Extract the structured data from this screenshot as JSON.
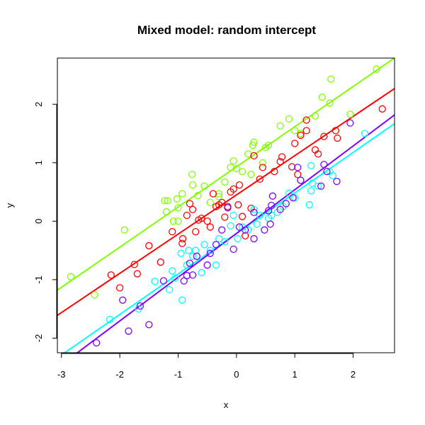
{
  "chart_data": {
    "type": "scatter",
    "title": "Mixed model: random intercept",
    "xlabel": "x",
    "ylabel": "y",
    "xlim": [
      -3.07,
      2.71
    ],
    "ylim": [
      -2.25,
      2.79
    ],
    "xticks": [
      -3,
      -2,
      -1,
      0,
      1,
      2
    ],
    "yticks": [
      -2,
      -1,
      0,
      1,
      2
    ],
    "xtick_labels": [
      "-3",
      "-2",
      "-1",
      "0",
      "1",
      "2"
    ],
    "ytick_labels": [
      "-2",
      "-1",
      "0",
      "1",
      "2"
    ],
    "grid": false,
    "marker": "open-circle",
    "series": [
      {
        "color": "#80FF00",
        "line": {
          "intercept": 0.93,
          "slope": 0.687
        },
        "points": [
          [
            -2.84,
            -0.95
          ],
          [
            -2.43,
            -1.26
          ],
          [
            -1.92,
            -0.15
          ],
          [
            -1.23,
            0.35
          ],
          [
            -1.18,
            0.35
          ],
          [
            -1.2,
            0.16
          ],
          [
            -1.08,
            0.0
          ],
          [
            -1.0,
            0.0
          ],
          [
            -1.02,
            0.38
          ],
          [
            -1.0,
            0.23
          ],
          [
            -0.93,
            0.47
          ],
          [
            -0.75,
            0.62
          ],
          [
            -0.76,
            0.8
          ],
          [
            -0.66,
            0.44
          ],
          [
            -0.55,
            0.6
          ],
          [
            -0.45,
            0.32
          ],
          [
            -0.3,
            0.47
          ],
          [
            -0.2,
            0.67
          ],
          [
            -0.05,
            1.03
          ],
          [
            0.1,
            0.85
          ],
          [
            0.2,
            1.15
          ],
          [
            0.28,
            1.3
          ],
          [
            0.3,
            1.35
          ],
          [
            0.25,
            0.8
          ],
          [
            0.45,
            1.0
          ],
          [
            0.5,
            1.26
          ],
          [
            0.55,
            1.3
          ],
          [
            0.75,
            1.63
          ],
          [
            0.9,
            1.75
          ],
          [
            1.0,
            1.55
          ],
          [
            1.1,
            1.5
          ],
          [
            1.35,
            1.8
          ],
          [
            1.47,
            2.12
          ],
          [
            1.6,
            2.02
          ],
          [
            1.62,
            2.43
          ],
          [
            1.95,
            1.83
          ],
          [
            2.4,
            2.6
          ],
          [
            -0.3,
            0.42
          ],
          [
            -0.1,
            0.92
          ],
          [
            0.0,
            0.9
          ]
        ]
      },
      {
        "color": "#FF0000",
        "line": {
          "intercept": 0.45,
          "slope": 0.671
        },
        "points": [
          [
            -2.15,
            -0.92
          ],
          [
            -2.0,
            -1.14
          ],
          [
            -1.75,
            -0.74
          ],
          [
            -1.7,
            -0.9
          ],
          [
            -1.5,
            -0.42
          ],
          [
            -1.3,
            -0.7
          ],
          [
            -1.1,
            -0.18
          ],
          [
            -0.93,
            -0.38
          ],
          [
            -0.92,
            -0.3
          ],
          [
            -0.85,
            0.1
          ],
          [
            -0.8,
            0.3
          ],
          [
            -0.75,
            0.2
          ],
          [
            -0.7,
            -0.18
          ],
          [
            -0.65,
            0.02
          ],
          [
            -0.6,
            0.05
          ],
          [
            -0.5,
            0.0
          ],
          [
            -0.4,
            0.47
          ],
          [
            -0.35,
            0.25
          ],
          [
            -0.3,
            0.28
          ],
          [
            -0.45,
            -0.1
          ],
          [
            -0.2,
            0.07
          ],
          [
            -0.15,
            0.25
          ],
          [
            -0.1,
            0.5
          ],
          [
            -0.05,
            0.55
          ],
          [
            0.03,
            0.28
          ],
          [
            0.05,
            0.62
          ],
          [
            0.1,
            0.08
          ],
          [
            0.25,
            0.22
          ],
          [
            0.3,
            1.12
          ],
          [
            0.4,
            0.72
          ],
          [
            0.45,
            0.92
          ],
          [
            0.65,
            0.85
          ],
          [
            0.75,
            1.02
          ],
          [
            0.78,
            1.1
          ],
          [
            0.95,
            0.93
          ],
          [
            1.0,
            1.33
          ],
          [
            1.05,
            0.8
          ],
          [
            1.1,
            1.47
          ],
          [
            1.2,
            1.55
          ],
          [
            1.2,
            1.73
          ],
          [
            1.35,
            1.22
          ],
          [
            1.4,
            1.15
          ],
          [
            1.5,
            1.45
          ],
          [
            1.7,
            1.55
          ],
          [
            1.73,
            1.42
          ],
          [
            2.5,
            1.92
          ],
          [
            0.15,
            -0.25
          ],
          [
            -0.25,
            0.32
          ]
        ]
      },
      {
        "color": "#00FFFF",
        "line": {
          "intercept": -0.21,
          "slope": 0.693
        },
        "points": [
          [
            -2.17,
            -1.68
          ],
          [
            -1.68,
            -1.5
          ],
          [
            -1.4,
            -1.03
          ],
          [
            -1.15,
            -1.17
          ],
          [
            -1.05,
            -0.97
          ],
          [
            -1.1,
            -0.85
          ],
          [
            -0.93,
            -1.35
          ],
          [
            -0.95,
            -0.55
          ],
          [
            -0.85,
            -0.75
          ],
          [
            -0.82,
            -0.5
          ],
          [
            -0.75,
            -0.6
          ],
          [
            -0.7,
            -0.5
          ],
          [
            -0.6,
            -0.88
          ],
          [
            -0.55,
            -0.4
          ],
          [
            -0.45,
            -0.5
          ],
          [
            -0.35,
            -0.75
          ],
          [
            -0.3,
            -0.3
          ],
          [
            -0.2,
            -0.35
          ],
          [
            -0.1,
            -0.08
          ],
          [
            -0.05,
            0.1
          ],
          [
            0.02,
            -0.3
          ],
          [
            0.1,
            -0.1
          ],
          [
            0.2,
            -0.15
          ],
          [
            0.3,
            0.2
          ],
          [
            0.35,
            -0.05
          ],
          [
            0.4,
            0.1
          ],
          [
            0.55,
            0.05
          ],
          [
            0.6,
            0.1
          ],
          [
            0.7,
            0.15
          ],
          [
            0.8,
            0.25
          ],
          [
            0.9,
            0.48
          ],
          [
            1.0,
            0.4
          ],
          [
            1.1,
            0.7
          ],
          [
            1.25,
            0.28
          ],
          [
            1.28,
            0.52
          ],
          [
            1.3,
            0.65
          ],
          [
            1.4,
            0.6
          ],
          [
            1.6,
            0.85
          ],
          [
            1.65,
            0.78
          ],
          [
            2.2,
            1.5
          ],
          [
            1.28,
            0.95
          ]
        ]
      },
      {
        "color": "#8000FF",
        "line": {
          "intercept": -0.21,
          "slope": 0.748
        },
        "points": [
          [
            -2.4,
            -2.08
          ],
          [
            -1.95,
            -1.35
          ],
          [
            -1.85,
            -1.88
          ],
          [
            -1.5,
            -1.77
          ],
          [
            -1.65,
            -1.45
          ],
          [
            -1.25,
            -1.02
          ],
          [
            -0.9,
            -1.02
          ],
          [
            -0.85,
            -0.93
          ],
          [
            -0.8,
            -0.72
          ],
          [
            -0.75,
            -0.92
          ],
          [
            -0.68,
            -0.6
          ],
          [
            -0.5,
            -0.75
          ],
          [
            -0.45,
            -0.55
          ],
          [
            -0.35,
            -0.4
          ],
          [
            -0.25,
            -0.15
          ],
          [
            -0.15,
            0.23
          ],
          [
            -0.05,
            -0.48
          ],
          [
            0.05,
            -0.1
          ],
          [
            0.15,
            -0.15
          ],
          [
            0.3,
            0.15
          ],
          [
            0.3,
            -0.3
          ],
          [
            0.48,
            -0.15
          ],
          [
            0.55,
            0.18
          ],
          [
            0.6,
            0.27
          ],
          [
            0.62,
            0.43
          ],
          [
            0.75,
            0.2
          ],
          [
            0.85,
            0.3
          ],
          [
            0.97,
            0.4
          ],
          [
            1.05,
            0.92
          ],
          [
            1.1,
            0.7
          ],
          [
            1.45,
            0.6
          ],
          [
            1.5,
            0.97
          ],
          [
            1.55,
            0.85
          ],
          [
            1.72,
            0.68
          ],
          [
            1.95,
            1.68
          ],
          [
            0.58,
            -0.05
          ]
        ]
      }
    ]
  }
}
